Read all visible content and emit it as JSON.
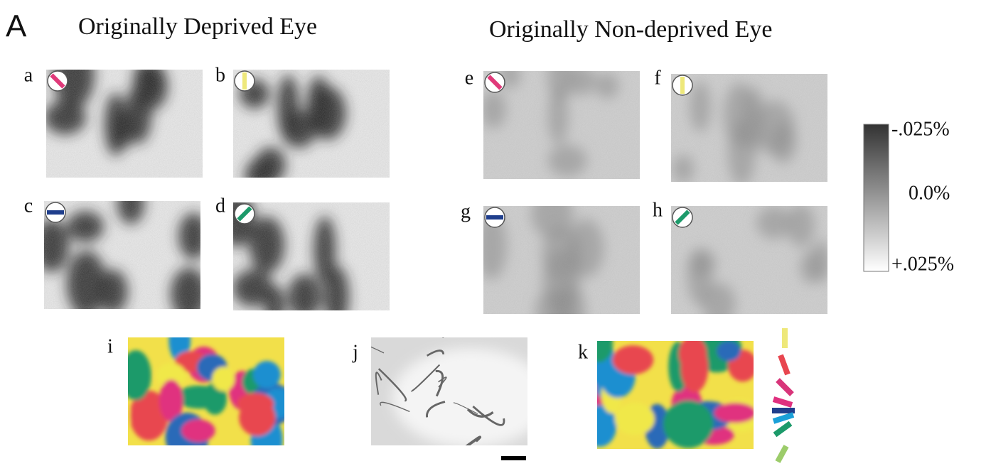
{
  "figure_label": "A",
  "groups": [
    {
      "title": "Originally Deprived Eye"
    },
    {
      "title": "Originally Non-deprived Eye"
    }
  ],
  "panels": [
    {
      "label": "a"
    },
    {
      "label": "b"
    },
    {
      "label": "c"
    },
    {
      "label": "d"
    },
    {
      "label": "e"
    },
    {
      "label": "f"
    },
    {
      "label": "g"
    },
    {
      "label": "h"
    },
    {
      "label": "i"
    },
    {
      "label": "j"
    },
    {
      "label": "k"
    }
  ],
  "colorbar": {
    "labels": [
      "-.025%",
      "0.0%",
      "+.025%"
    ]
  }
}
